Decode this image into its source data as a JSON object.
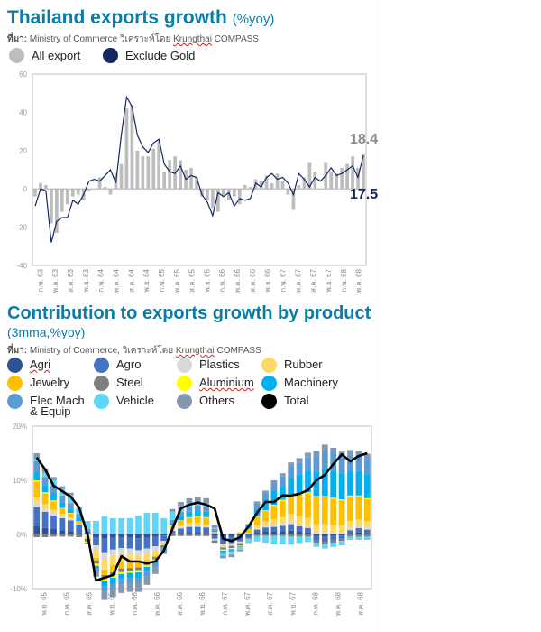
{
  "chart_data": [
    {
      "type": "bar",
      "title": "Thailand exports growth",
      "title_unit": "(%yoy)",
      "source_prefix": "ที่มา:",
      "source_main": " Ministry of Commerce วิเคราะห์โดย ",
      "source_brand": "Krungthai",
      "source_tail": " COMPASS",
      "ylim": [
        -40,
        60
      ],
      "yticks": [
        "60",
        "40",
        "20",
        "0",
        "-20",
        "-40"
      ],
      "x_tick_labels": [
        "ก.พ. 63",
        "พ.ค. 63",
        "ส.ค. 63",
        "พ.ย. 63",
        "ก.พ. 64",
        "พ.ค. 64",
        "ส.ค. 64",
        "พ.ย. 64",
        "ก.พ. 65",
        "พ.ค. 65",
        "ส.ค. 65",
        "พ.ย. 65",
        "ก.พ. 66",
        "พ.ค. 66",
        "ส.ค. 66",
        "พ.ย. 66",
        "ก.พ. 67",
        "พ.ค. 67",
        "ส.ค. 67",
        "พ.ย. 67",
        "ก.พ. 68",
        "พ.ค. 68"
      ],
      "series": [
        {
          "name": "All export",
          "color": "#bdbdbd",
          "values": [
            -4,
            3,
            2,
            -18,
            -23,
            -12,
            -8,
            -4,
            -3,
            -6,
            -1,
            0,
            6,
            1,
            -3,
            8,
            13,
            42,
            44,
            20,
            17,
            17,
            21,
            25,
            9,
            15,
            17,
            15,
            10,
            11,
            6,
            -4,
            -6,
            -10,
            -12,
            -4,
            -6,
            -4,
            -8,
            2,
            1,
            5,
            4,
            7,
            3,
            8,
            4,
            -3,
            -11,
            2,
            6,
            14,
            9,
            0,
            14,
            9,
            8,
            11,
            13,
            17,
            11,
            18
          ]
        },
        {
          "name": "Exclude Gold",
          "color": "#12275e",
          "values": [
            -9,
            0,
            -1,
            -28,
            -17,
            -15,
            -15,
            -6,
            -8,
            -3,
            4,
            5,
            4,
            7,
            10,
            3,
            28,
            48,
            43,
            28,
            22,
            19,
            24,
            26,
            13,
            9,
            8,
            12,
            5,
            7,
            6,
            -3,
            -7,
            -14,
            -2,
            -4,
            -2,
            -9,
            -5,
            -6,
            -5,
            3,
            1,
            6,
            8,
            5,
            6,
            3,
            -3,
            8,
            5,
            1,
            6,
            4,
            7,
            11,
            7,
            8,
            10,
            12,
            6,
            17.5
          ]
        }
      ],
      "end_labels": {
        "all_export": "18.4",
        "exclude_gold": "17.5"
      }
    },
    {
      "type": "bar",
      "stacked": true,
      "title": "Contribution to exports growth by product",
      "subtitle": "(3mma,%yoy)",
      "source_prefix": "ที่มา:",
      "source_main": " Ministry of Commerce, วิเคราะห์โดย ",
      "source_brand": "Krungthai",
      "source_tail": " COMPASS",
      "ylim": [
        -10,
        20
      ],
      "yticks": [
        "20%",
        "10%",
        "0%",
        "-10%"
      ],
      "x_tick_labels": [
        "พ.ย. 65",
        "ก.พ. 65",
        "ส.ค. 65",
        "พ.ย. 65",
        "ก.พ. 66",
        "พ.ค. 66",
        "ส.ค. 66",
        "พ.ย. 66",
        "ก.พ. 67",
        "พ.ค. 67",
        "ส.ค. 67",
        "พ.ย. 67",
        "ก.พ. 68",
        "พ.ค. 68",
        "ส.ค. 68"
      ],
      "series": [
        {
          "name": "Agri",
          "color": "#2f5496",
          "values": [
            1.5,
            1.2,
            1.0,
            0.8,
            0.6,
            0.3,
            0,
            -0.5,
            -0.8,
            -0.6,
            -0.5,
            -0.6,
            -0.7,
            -0.6,
            -0.4,
            -0.2,
            0.2,
            0.3,
            0.4,
            0.4,
            0.3,
            -0.3,
            -0.5,
            -0.4,
            -0.3,
            0,
            0.4,
            0.5,
            0.6,
            0.6,
            0.7,
            0.5,
            0.4,
            -0.3,
            -0.4,
            -0.3,
            -0.2,
            0.3,
            0.4,
            0.3
          ]
        },
        {
          "name": "Agro",
          "color": "#4472c4",
          "values": [
            3.5,
            3.0,
            2.5,
            2.2,
            2.0,
            1.5,
            0.5,
            -1.5,
            -2.5,
            -2.2,
            -2.0,
            -2.0,
            -2.2,
            -2.0,
            -1.8,
            -1.0,
            0.5,
            0.8,
            1.0,
            1.0,
            1.0,
            -0.5,
            -1.2,
            -1.2,
            -1.0,
            -0.5,
            0.5,
            0.8,
            0.8,
            1.0,
            1.2,
            1.0,
            0.8,
            -0.8,
            -1.0,
            -0.8,
            -0.6,
            0.5,
            0.8,
            0.6
          ]
        },
        {
          "name": "Plastics",
          "color": "#d9d9d9",
          "values": [
            0.8,
            0.6,
            0.5,
            0.4,
            0.3,
            0.2,
            -0.3,
            -0.8,
            -1.2,
            -1.1,
            -1.0,
            -1.1,
            -1.0,
            -0.9,
            -0.7,
            -0.3,
            0.2,
            0.3,
            0.3,
            0.3,
            0.2,
            -0.3,
            -0.5,
            -0.4,
            -0.3,
            0,
            0.2,
            0.3,
            0.4,
            0.4,
            0.5,
            0.4,
            0.4,
            0.3,
            0.3,
            0.3,
            0.3,
            0.4,
            0.4,
            0.4
          ]
        },
        {
          "name": "Rubber",
          "color": "#ffd966",
          "values": [
            1.0,
            0.8,
            0.6,
            0.4,
            0.2,
            0,
            -0.5,
            -1.5,
            -2.0,
            -1.8,
            -1.6,
            -1.5,
            -1.4,
            -1.2,
            -1.0,
            -0.5,
            0.2,
            0.3,
            0.4,
            0.4,
            0.3,
            0,
            -0.2,
            -0.1,
            0,
            0.3,
            0.6,
            0.8,
            1.0,
            1.2,
            1.4,
            1.5,
            1.5,
            1.6,
            1.6,
            1.5,
            1.4,
            1.3,
            1.2,
            1.2
          ]
        },
        {
          "name": "Jewelry",
          "color": "#ffc000",
          "values": [
            3.0,
            2.0,
            1.5,
            1.0,
            0.8,
            0.5,
            0,
            -0.5,
            -1.0,
            -1.2,
            -1.2,
            -1.0,
            -0.8,
            -0.6,
            -0.3,
            0,
            0.5,
            0.8,
            1.0,
            1.2,
            1.3,
            0.5,
            0,
            0.2,
            0.4,
            0.8,
            1.5,
            2.0,
            2.5,
            3.0,
            3.5,
            4.0,
            4.5,
            5.0,
            5.0,
            4.8,
            4.6,
            4.5,
            4.2,
            4.0
          ]
        },
        {
          "name": "Steel",
          "color": "#7f7f7f",
          "values": [
            -0.5,
            -0.5,
            -0.4,
            -0.4,
            -0.4,
            -0.5,
            -0.5,
            -0.6,
            -0.6,
            -0.6,
            -0.5,
            -0.5,
            -0.5,
            -0.4,
            -0.4,
            -0.4,
            -0.3,
            -0.3,
            -0.3,
            -0.3,
            -0.3,
            -0.4,
            -0.4,
            -0.4,
            -0.4,
            -0.3,
            -0.3,
            -0.3,
            -0.3,
            -0.3,
            -0.4,
            -0.4,
            -0.4,
            -0.4,
            -0.4,
            -0.4,
            -0.4,
            -0.4,
            -0.4,
            -0.4
          ]
        },
        {
          "name": "Aluminium",
          "color": "#ffff00",
          "values": [
            0.2,
            0.2,
            0.2,
            0.1,
            0.1,
            0,
            -0.2,
            -0.4,
            -0.5,
            -0.5,
            -0.5,
            -0.4,
            -0.4,
            -0.3,
            -0.2,
            0,
            0.1,
            0.1,
            0.1,
            0.1,
            0.1,
            -0.1,
            -0.2,
            -0.2,
            -0.1,
            0,
            0.1,
            0.1,
            0.2,
            0.2,
            0.2,
            0.2,
            0.2,
            0.2,
            0.2,
            0.2,
            0.2,
            0.2,
            0.2,
            0.2
          ]
        },
        {
          "name": "Machinery",
          "color": "#00b0f0",
          "values": [
            1.5,
            1.3,
            1.2,
            1.0,
            0.8,
            0.5,
            0,
            -0.5,
            -1.0,
            -1.0,
            -1.0,
            -1.0,
            -1.0,
            -0.8,
            -0.5,
            -0.2,
            0.5,
            0.8,
            1.0,
            1.0,
            1.0,
            0.2,
            -0.3,
            -0.2,
            0,
            0.5,
            1.5,
            2.0,
            2.5,
            2.5,
            3.0,
            3.5,
            4.0,
            4.5,
            5.0,
            5.0,
            4.8,
            4.6,
            4.5,
            4.4
          ]
        },
        {
          "name": "Elec Mach & Equip",
          "color": "#5b9bd5",
          "values": [
            2.0,
            1.5,
            1.5,
            1.3,
            1.0,
            0.8,
            0.5,
            -0.5,
            -1.0,
            -1.0,
            -1.0,
            -1.0,
            -1.0,
            -1.0,
            -0.8,
            -0.5,
            0.5,
            0.8,
            1.0,
            1.0,
            1.0,
            0.3,
            -0.3,
            -0.3,
            -0.2,
            0.3,
            1.0,
            1.2,
            1.5,
            1.8,
            2.0,
            2.2,
            2.5,
            3.0,
            3.5,
            3.2,
            3.0,
            3.0,
            3.0,
            3.0
          ]
        },
        {
          "name": "Vehicle",
          "color": "#5fd6f5",
          "values": [
            0.5,
            0.8,
            1.0,
            1.2,
            1.5,
            1.0,
            1.5,
            2.5,
            3.5,
            3.0,
            3.0,
            3.0,
            3.5,
            4.0,
            4.0,
            3.0,
            1.5,
            1.0,
            0.5,
            0.5,
            0.5,
            0.2,
            -0.3,
            -0.5,
            -0.5,
            -0.8,
            -1.0,
            -1.2,
            -1.5,
            -1.5,
            -1.5,
            -1.2,
            -1.0,
            -0.8,
            -0.8,
            -0.8,
            -0.8,
            -0.6,
            -0.6,
            -0.6
          ]
        },
        {
          "name": "Others",
          "color": "#8497b0",
          "values": [
            1.0,
            0.8,
            0.6,
            0.5,
            0.4,
            0.2,
            -0.2,
            -1.0,
            -1.5,
            -1.5,
            -1.5,
            -1.5,
            -1.6,
            -1.5,
            -1.2,
            -0.5,
            0.5,
            0.8,
            1.0,
            1.0,
            1.0,
            0.5,
            -0.5,
            -0.5,
            -0.3,
            0,
            0.3,
            0.4,
            0.5,
            0.6,
            0.8,
            0.8,
            0.8,
            0.8,
            1.0,
            1.0,
            1.0,
            0.8,
            0.8,
            0.8
          ]
        },
        {
          "name": "Total",
          "color": "#000000",
          "values": [
            14.2,
            12,
            9,
            8,
            7,
            5,
            0,
            -8.5,
            -8,
            -7.5,
            -4,
            -5,
            -5,
            -5.3,
            -5,
            -3,
            1,
            4.8,
            5.5,
            5.9,
            5.5,
            4.8,
            -0.8,
            -1.2,
            -0.5,
            1.5,
            4,
            6,
            6,
            7.2,
            7.2,
            7.5,
            8.2,
            10,
            11,
            13,
            14.8,
            13.5,
            14.5,
            15
          ]
        }
      ]
    }
  ],
  "legend1": [
    {
      "label": "All export",
      "color": "#bdbdbd"
    },
    {
      "label": "Exclude Gold",
      "color": "#12275e"
    }
  ],
  "legend2": [
    {
      "label": "Agri",
      "color": "#2f5496"
    },
    {
      "label": "Agro",
      "color": "#4472c4"
    },
    {
      "label": "Plastics",
      "color": "#d9d9d9"
    },
    {
      "label": "Rubber",
      "color": "#ffd966"
    },
    {
      "label": "Jewelry",
      "color": "#ffc000"
    },
    {
      "label": "Steel",
      "color": "#7f7f7f"
    },
    {
      "label": "Aluminium",
      "color": "#ffff00"
    },
    {
      "label": "Machinery",
      "color": "#00b0f0"
    },
    {
      "label": "Elec Mach",
      "label2": "& Equip",
      "color": "#5b9bd5"
    },
    {
      "label": "Vehicle",
      "color": "#5fd6f5"
    },
    {
      "label": "Others",
      "color": "#8497b0"
    },
    {
      "label": "Total",
      "color": "#000000"
    }
  ]
}
